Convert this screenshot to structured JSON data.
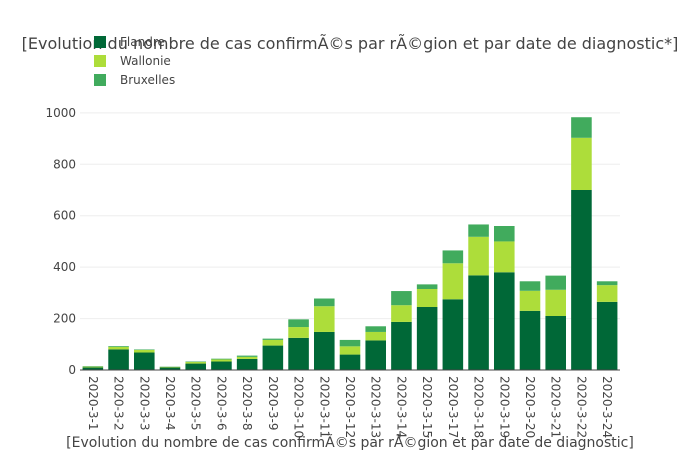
{
  "chart_data": {
    "type": "bar",
    "stacked": true,
    "title": "[Evolution du nombre de cas confirmÃ©s par rÃ©gion et par date de diagnostic*]",
    "xlabel": "[Evolution du nombre de cas confirmÃ©s par rÃ©gion et par date de diagnostic]",
    "ylabel": "",
    "ylim": [
      0,
      1050
    ],
    "yticks": [
      "0",
      "200",
      "400",
      "600",
      "800",
      "1000"
    ],
    "grid": true,
    "legend_position": "top-left",
    "categories": [
      "2020-3-1",
      "2020-3-2",
      "2020-3-3",
      "2020-3-4",
      "2020-3-5",
      "2020-3-6",
      "2020-3-8",
      "2020-3-9",
      "2020-3-10",
      "2020-3-11",
      "2020-3-12",
      "2020-3-13",
      "2020-3-14",
      "2020-3-15",
      "2020-3-17",
      "2020-3-18",
      "2020-3-19",
      "2020-3-20",
      "2020-3-21",
      "2020-3-22",
      "2020-3-24"
    ],
    "series": [
      {
        "name": "Flandre",
        "color": "#006837",
        "values": [
          10,
          80,
          68,
          10,
          25,
          33,
          43,
          95,
          125,
          148,
          60,
          115,
          187,
          245,
          275,
          368,
          380,
          230,
          210,
          700,
          265
        ]
      },
      {
        "name": "Wallonie",
        "color": "#addd3a",
        "values": [
          3,
          10,
          10,
          2,
          6,
          8,
          8,
          22,
          42,
          100,
          32,
          33,
          65,
          70,
          140,
          150,
          120,
          78,
          102,
          203,
          65
        ]
      },
      {
        "name": "Bruxelles",
        "color": "#41ab5d",
        "values": [
          2,
          3,
          2,
          1,
          2,
          3,
          5,
          5,
          30,
          30,
          25,
          22,
          55,
          18,
          50,
          48,
          60,
          37,
          55,
          80,
          15
        ]
      }
    ]
  }
}
